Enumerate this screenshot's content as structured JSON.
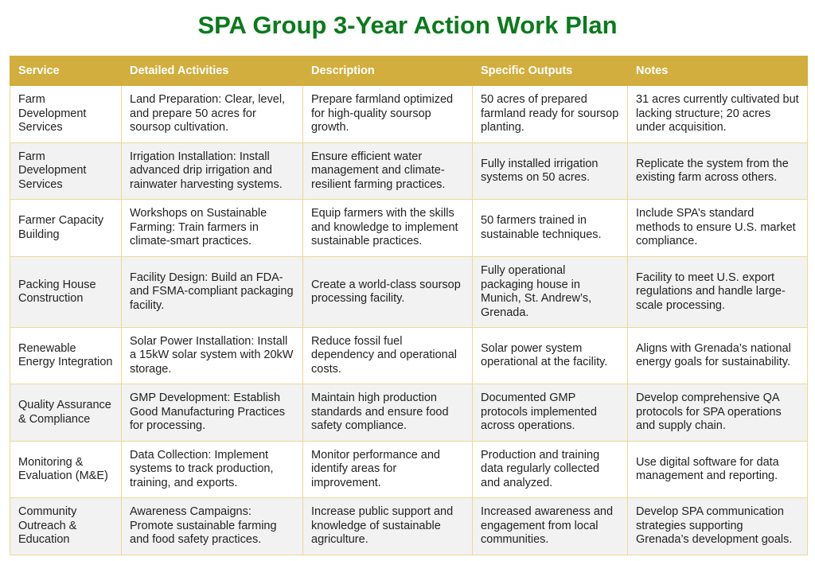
{
  "title": "SPA Group 3-Year Action Work Plan",
  "colors": {
    "title": "#0b7a1c",
    "header_bg": "#d2ae3e",
    "border": "#ecd996",
    "alt_row": "#f2f2f2"
  },
  "headers": [
    "Service",
    "Detailed Activities",
    "Description",
    "Specific Outputs",
    "Notes"
  ],
  "rows": [
    [
      "Farm Development Services",
      "Land Preparation: Clear, level, and prepare 50 acres for soursop cultivation.",
      "Prepare farmland optimized for high-quality soursop growth.",
      "50 acres of prepared farmland ready for soursop planting.",
      "31 acres currently cultivated but lacking structure; 20 acres under acquisition."
    ],
    [
      "Farm Development Services",
      "Irrigation Installation: Install advanced drip irrigation and rainwater harvesting systems.",
      "Ensure efficient water management and climate-resilient farming practices.",
      "Fully installed irrigation systems on 50 acres.",
      "Replicate the system from the existing farm across others."
    ],
    [
      "Farmer Capacity Building",
      "Workshops on Sustainable Farming: Train farmers in climate-smart practices.",
      "Equip farmers with the skills and knowledge to implement sustainable practices.",
      "50 farmers trained in sustainable techniques.",
      "Include SPA’s standard methods to ensure U.S. market compliance."
    ],
    [
      "Packing House Construction",
      "Facility Design: Build an FDA- and FSMA-compliant packaging facility.",
      "Create a world-class soursop processing facility.",
      "Fully operational packaging house in Munich, St. Andrew’s, Grenada.",
      "Facility to meet U.S. export regulations and handle large-scale processing."
    ],
    [
      "Renewable Energy Integration",
      "Solar Power Installation: Install a 15kW solar system with 20kW storage.",
      "Reduce fossil fuel dependency and operational costs.",
      "Solar power system operational at the facility.",
      "Aligns with Grenada’s national energy goals for sustainability."
    ],
    [
      "Quality Assurance & Compliance",
      "GMP Development: Establish Good Manufacturing Practices for processing.",
      "Maintain high production standards and ensure food safety compliance.",
      "Documented GMP protocols implemented across operations.",
      "Develop comprehensive QA protocols for SPA operations and supply chain."
    ],
    [
      "Monitoring & Evaluation (M&E)",
      "Data Collection: Implement systems to track production, training, and exports.",
      "Monitor performance and identify areas for improvement.",
      "Production and training data regularly collected and analyzed.",
      "Use digital software for data management and reporting."
    ],
    [
      "Community Outreach & Education",
      "Awareness Campaigns: Promote sustainable farming and food safety practices.",
      "Increase public support and knowledge of sustainable agriculture.",
      "Increased awareness and engagement from local communities.",
      "Develop SPA communication strategies supporting Grenada’s development goals."
    ]
  ]
}
